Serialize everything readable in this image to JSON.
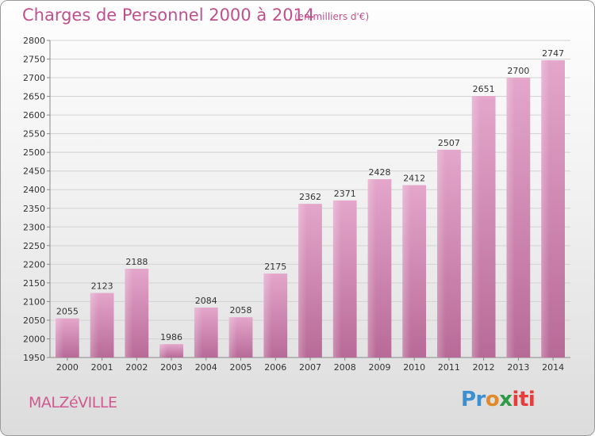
{
  "chart_data": {
    "type": "bar",
    "title": "Charges de Personnel 2000 à 2014",
    "subtitle": "(en milliers d'€)",
    "categories": [
      "2000",
      "2001",
      "2002",
      "2003",
      "2004",
      "2005",
      "2006",
      "2007",
      "2008",
      "2009",
      "2010",
      "2011",
      "2012",
      "2013",
      "2014"
    ],
    "values": [
      2055,
      2123,
      2188,
      1986,
      2084,
      2058,
      2175,
      2362,
      2371,
      2428,
      2412,
      2507,
      2651,
      2700,
      2747
    ],
    "ylim": [
      1950,
      2800
    ],
    "ytick_step": 50,
    "xlabel": "",
    "ylabel": "",
    "grid": true,
    "bar_color": "#c56b9e"
  },
  "footer": {
    "city": "MALZéVILLE",
    "logo_parts": [
      "Pr",
      "o",
      "x",
      "iti"
    ]
  }
}
